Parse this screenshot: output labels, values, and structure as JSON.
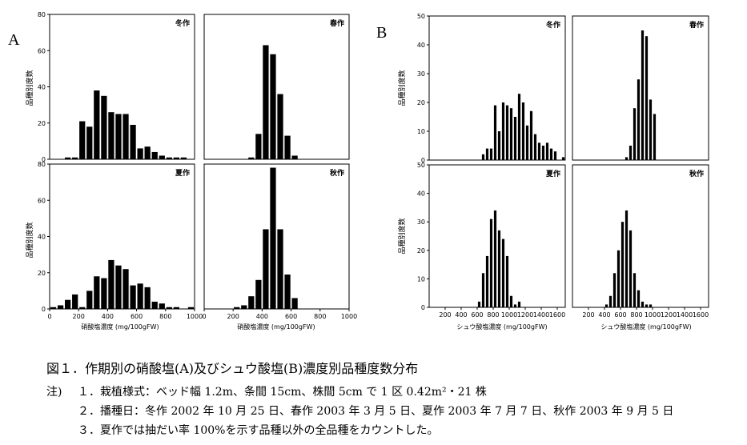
{
  "figure_a_label": "A",
  "figure_b_label": "B",
  "y_label": "品種別度数",
  "a_x_label": "硝酸塩濃度 (mg/100gFW)",
  "b_x_label": "シュウ酸塩濃度 (mg/100gFW)",
  "seasons": [
    "冬作",
    "春作",
    "夏作",
    "秋作"
  ],
  "caption": {
    "title": "図１．作期別の硝酸塩(A)及びシュウ酸塩(B)濃度別品種度数分布",
    "note_label": "注)",
    "notes": [
      "１．栽植様式：ベッド幅 1.2m、条間 15cm、株間 5cm で 1 区 0.42m²・21 株",
      "２．播種日：冬作 2002 年 10 月 25 日、春作 2003 年 3 月 5 日、夏作 2003 年 7 月 7 日、秋作 2003 年 9 月 5 日",
      "３．夏作では抽だい率 100%を示す品種以外の全品種をカウントした。"
    ]
  },
  "chart_data": [
    {
      "type": "bar",
      "panel": "A",
      "title": "冬作",
      "xlabel": "硝酸塩濃度 (mg/100gFW)",
      "ylabel": "品種別度数",
      "xlim": [
        0,
        1000
      ],
      "ylim": [
        0,
        80
      ],
      "bin_width": 50,
      "xticks": [],
      "yticks": [
        "0",
        "20",
        "40",
        "60",
        "80"
      ],
      "x": [
        100,
        150,
        200,
        250,
        300,
        350,
        400,
        450,
        500,
        550,
        600,
        650,
        700,
        750,
        800,
        850,
        900
      ],
      "values": [
        1,
        1,
        21,
        18,
        38,
        35,
        26,
        25,
        25,
        19,
        6,
        7,
        4,
        2,
        1,
        1,
        1
      ]
    },
    {
      "type": "bar",
      "panel": "A",
      "title": "春作",
      "xlabel": "硝酸塩濃度 (mg/100gFW)",
      "ylabel": "品種別度数",
      "xlim": [
        0,
        1000
      ],
      "ylim": [
        0,
        80
      ],
      "bin_width": 50,
      "xticks": [],
      "yticks": [],
      "x": [
        300,
        350,
        400,
        450,
        500,
        550,
        600
      ],
      "values": [
        1,
        14,
        63,
        58,
        36,
        13,
        2
      ]
    },
    {
      "type": "bar",
      "panel": "A",
      "title": "夏作",
      "xlabel": "硝酸塩濃度 (mg/100gFW)",
      "ylabel": "品種別度数",
      "xlim": [
        0,
        1000
      ],
      "ylim": [
        0,
        80
      ],
      "bin_width": 50,
      "xticks": [
        "0",
        "200",
        "400",
        "600",
        "800",
        "1000"
      ],
      "yticks": [
        "0",
        "20",
        "40",
        "60",
        "80"
      ],
      "x": [
        0,
        50,
        100,
        150,
        200,
        250,
        300,
        350,
        400,
        450,
        500,
        550,
        600,
        650,
        700,
        750,
        800,
        850,
        900,
        950
      ],
      "values": [
        1,
        2,
        5,
        8,
        1,
        10,
        18,
        17,
        27,
        24,
        22,
        13,
        14,
        12,
        4,
        3,
        1,
        1,
        0,
        1
      ]
    },
    {
      "type": "bar",
      "panel": "A",
      "title": "秋作",
      "xlabel": "硝酸塩濃度 (mg/100gFW)",
      "ylabel": "品種別度数",
      "xlim": [
        0,
        1000
      ],
      "ylim": [
        0,
        80
      ],
      "bin_width": 50,
      "xticks": [
        "0",
        "200",
        "400",
        "600",
        "800",
        "1000"
      ],
      "yticks": [],
      "x": [
        200,
        250,
        300,
        350,
        400,
        450,
        500,
        550,
        600
      ],
      "values": [
        1,
        2,
        7,
        16,
        44,
        78,
        44,
        19,
        6
      ]
    },
    {
      "type": "bar",
      "panel": "B",
      "title": "冬作",
      "xlabel": "シュウ酸塩濃度 (mg/100gFW)",
      "ylabel": "品種別度数",
      "xlim": [
        0,
        1700
      ],
      "ylim": [
        0,
        50
      ],
      "bin_width": 50,
      "xticks": [],
      "yticks": [
        "0",
        "10",
        "20",
        "30",
        "40",
        "50"
      ],
      "x": [
        650,
        700,
        750,
        800,
        850,
        900,
        950,
        1000,
        1050,
        1100,
        1150,
        1200,
        1250,
        1300,
        1350,
        1400,
        1450,
        1500,
        1550,
        1600,
        1650
      ],
      "values": [
        2,
        4,
        4,
        19,
        10,
        20,
        19,
        18,
        15,
        23,
        20,
        12,
        17,
        9,
        6,
        5,
        6,
        4,
        3,
        0,
        1
      ]
    },
    {
      "type": "bar",
      "panel": "B",
      "title": "春作",
      "xlabel": "シュウ酸塩濃度 (mg/100gFW)",
      "ylabel": "品種別度数",
      "xlim": [
        0,
        1700
      ],
      "ylim": [
        0,
        50
      ],
      "bin_width": 50,
      "xticks": [],
      "yticks": [],
      "x": [
        650,
        700,
        750,
        800,
        850,
        900,
        950,
        1000
      ],
      "values": [
        1,
        5,
        18,
        28,
        45,
        43,
        21,
        16
      ]
    },
    {
      "type": "bar",
      "panel": "B",
      "title": "夏作",
      "xlabel": "シュウ酸塩濃度 (mg/100gFW)",
      "ylabel": "品種別度数",
      "xlim": [
        0,
        1700
      ],
      "ylim": [
        0,
        50
      ],
      "bin_width": 50,
      "xticks": [
        "200",
        "400",
        "600",
        "800",
        "1000",
        "1200",
        "1400",
        "1600"
      ],
      "yticks": [
        "0",
        "10",
        "20",
        "30",
        "40",
        "50"
      ],
      "x": [
        600,
        650,
        700,
        750,
        800,
        850,
        900,
        950,
        1000,
        1050,
        1100
      ],
      "values": [
        2,
        12,
        18,
        31,
        34,
        27,
        24,
        18,
        4,
        1,
        2
      ]
    },
    {
      "type": "bar",
      "panel": "B",
      "title": "秋作",
      "xlabel": "シュウ酸塩濃度 (mg/100gFW)",
      "ylabel": "品種別度数",
      "xlim": [
        0,
        1700
      ],
      "ylim": [
        0,
        50
      ],
      "bin_width": 50,
      "xticks": [
        "200",
        "400",
        "600",
        "800",
        "1000",
        "1200",
        "1400",
        "1600"
      ],
      "yticks": [],
      "x": [
        400,
        450,
        500,
        550,
        600,
        650,
        700,
        750,
        800,
        850,
        900,
        950
      ],
      "values": [
        1,
        4,
        12,
        20,
        30,
        34,
        27,
        12,
        6,
        2,
        1,
        1
      ]
    }
  ]
}
